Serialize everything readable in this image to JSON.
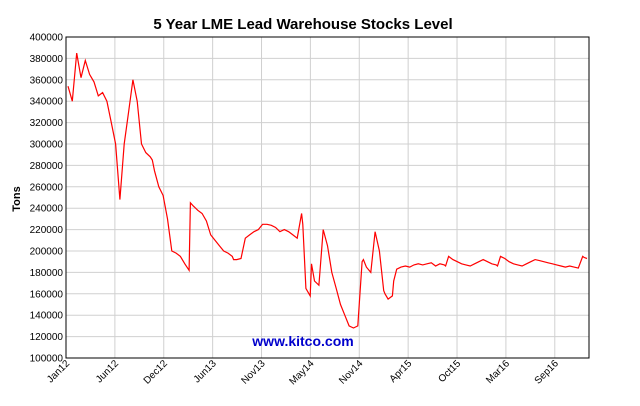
{
  "chart_data": {
    "type": "line",
    "title": "5 Year LME Lead Warehouse Stocks Level",
    "ylabel": "Tons",
    "xlabel": "",
    "ylim": [
      100000,
      400000
    ],
    "yticks": [
      100000,
      120000,
      140000,
      160000,
      180000,
      200000,
      220000,
      240000,
      260000,
      280000,
      300000,
      320000,
      340000,
      360000,
      380000,
      400000
    ],
    "xticks": [
      "Jan12",
      "Jun12",
      "Dec12",
      "Jun13",
      "Nov13",
      "May14",
      "Nov14",
      "Apr15",
      "Oct15",
      "Mar16",
      "Sep16"
    ],
    "grid": true,
    "line_color": "#ff0000",
    "watermark": "www.kitco.com",
    "series": [
      {
        "x": [
          0,
          1,
          2,
          3,
          4,
          5,
          6,
          7,
          8,
          9,
          10,
          11,
          12,
          13,
          14,
          15,
          16,
          17,
          18,
          19,
          19.5,
          20,
          21,
          22,
          23,
          24,
          25,
          26,
          27,
          28,
          28.3,
          29,
          30,
          31,
          32,
          33,
          34,
          35,
          36,
          37,
          38,
          38.3,
          39,
          40,
          41,
          42,
          43,
          44,
          45,
          46,
          47,
          48,
          49,
          50,
          51,
          52,
          53,
          54,
          54.3,
          55,
          56,
          56.3,
          57,
          58,
          59,
          60,
          61,
          62,
          63,
          64,
          65,
          66,
          67,
          68,
          68.3,
          69,
          70,
          71,
          72,
          73,
          73.3,
          74,
          75,
          75.3,
          76,
          77,
          78,
          79,
          80,
          81,
          82,
          83,
          84,
          85,
          86,
          87,
          87.3,
          88,
          89,
          90,
          91,
          92,
          93,
          94,
          95,
          96,
          97,
          98,
          99,
          99.3,
          100,
          101,
          102,
          103,
          104,
          105,
          106,
          107,
          108,
          109,
          110,
          111,
          112,
          113,
          114,
          115,
          116,
          117,
          118,
          119,
          119.3,
          120
        ],
        "values": [
          354000,
          340000,
          385000,
          362000,
          378000,
          365000,
          358000,
          345000,
          348000,
          340000,
          320000,
          300000,
          248000,
          300000,
          330000,
          360000,
          340000,
          300000,
          292000,
          288000,
          285000,
          275000,
          260000,
          252000,
          230000,
          200000,
          198000,
          195000,
          188000,
          182000,
          245000,
          242000,
          238000,
          235000,
          228000,
          215000,
          210000,
          205000,
          200000,
          198000,
          195000,
          192000,
          192000,
          193000,
          212000,
          215000,
          218000,
          220000,
          225000,
          225000,
          224000,
          222000,
          218000,
          220000,
          218000,
          215000,
          212000,
          235000,
          225000,
          165000,
          158000,
          188000,
          172000,
          168000,
          220000,
          205000,
          180000,
          165000,
          150000,
          140000,
          130000,
          128000,
          130000,
          190000,
          192000,
          185000,
          180000,
          218000,
          200000,
          163000,
          160000,
          155000,
          158000,
          172000,
          183000,
          185000,
          186000,
          185000,
          187000,
          188000,
          187000,
          188000,
          189000,
          186000,
          188000,
          187000,
          186000,
          195000,
          192000,
          190000,
          188000,
          187000,
          186000,
          188000,
          190000,
          192000,
          190000,
          188000,
          187000,
          186000,
          195000,
          193000,
          190000,
          188000,
          187000,
          186000,
          188000,
          190000,
          192000,
          191000,
          190000,
          189000,
          188000,
          187000,
          186000,
          185000,
          186000,
          185000,
          184000,
          195000,
          194000,
          193000
        ]
      }
    ]
  }
}
